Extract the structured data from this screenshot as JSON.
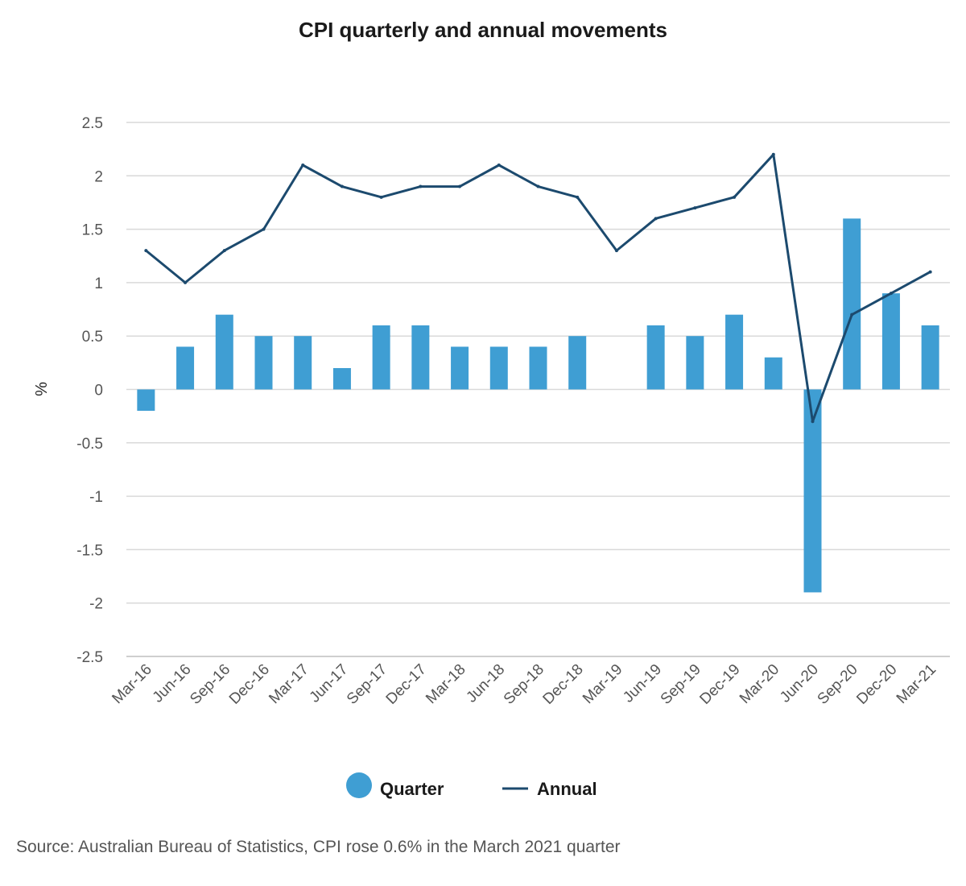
{
  "title": "CPI quarterly and annual movements",
  "source": "Source: Australian Bureau of Statistics, CPI rose 0.6% in the March 2021 quarter",
  "colors": {
    "quarter": "#3f9ed3",
    "annual": "#1c4a6e",
    "grid": "#d9d9d9",
    "axis": "#bfbfbf"
  },
  "chart_data": {
    "type": "bar",
    "ylabel": "%",
    "ylim": [
      -2.5,
      2.5
    ],
    "yticks": [
      2.5,
      2,
      1.5,
      1,
      0.5,
      0,
      -0.5,
      -1,
      -1.5,
      -2,
      -2.5
    ],
    "grid": true,
    "legend_position": "bottom",
    "categories": [
      "Mar-16",
      "Jun-16",
      "Sep-16",
      "Dec-16",
      "Mar-17",
      "Jun-17",
      "Sep-17",
      "Dec-17",
      "Mar-18",
      "Jun-18",
      "Sep-18",
      "Dec-18",
      "Mar-19",
      "Jun-19",
      "Sep-19",
      "Dec-19",
      "Mar-20",
      "Jun-20",
      "Sep-20",
      "Dec-20",
      "Mar-21"
    ],
    "series": [
      {
        "name": "Quarter",
        "type": "bar",
        "values": [
          -0.2,
          0.4,
          0.7,
          0.5,
          0.5,
          0.2,
          0.6,
          0.6,
          0.4,
          0.4,
          0.4,
          0.5,
          0.0,
          0.6,
          0.5,
          0.7,
          0.3,
          -1.9,
          1.6,
          0.9,
          0.6
        ]
      },
      {
        "name": "Annual",
        "type": "line",
        "values": [
          1.3,
          1.0,
          1.3,
          1.5,
          2.1,
          1.9,
          1.8,
          1.9,
          1.9,
          2.1,
          1.9,
          1.8,
          1.3,
          1.6,
          1.7,
          1.8,
          2.2,
          -0.3,
          0.7,
          0.9,
          1.1
        ]
      }
    ]
  }
}
